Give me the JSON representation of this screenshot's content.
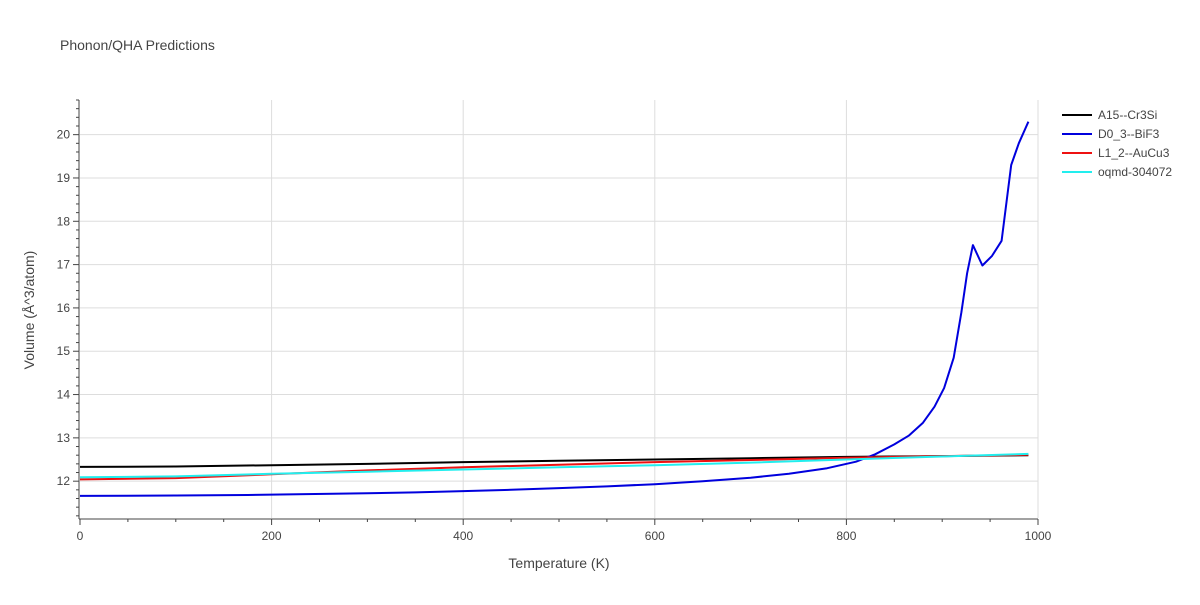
{
  "chart_data": {
    "type": "line",
    "title": "Phonon/QHA Predictions",
    "xlabel": "Temperature (K)",
    "ylabel": "Volume (Å^3/atom)",
    "xlim": [
      0,
      1000
    ],
    "ylim": [
      11.15,
      20.8
    ],
    "xticks": [
      0,
      200,
      400,
      600,
      800,
      1000
    ],
    "yticks": [
      12,
      13,
      14,
      15,
      16,
      17,
      18,
      19,
      20
    ],
    "grid": true,
    "legend_position": "top-right",
    "series": [
      {
        "name": "A15--Cr3Si",
        "color": "#000000",
        "points": [
          [
            0,
            12.33
          ],
          [
            100,
            12.34
          ],
          [
            200,
            12.37
          ],
          [
            300,
            12.4
          ],
          [
            400,
            12.44
          ],
          [
            500,
            12.47
          ],
          [
            600,
            12.5
          ],
          [
            700,
            12.53
          ],
          [
            800,
            12.56
          ],
          [
            900,
            12.58
          ],
          [
            990,
            12.6
          ]
        ]
      },
      {
        "name": "D0_3--BiF3",
        "color": "#0000dd",
        "points": [
          [
            0,
            11.66
          ],
          [
            100,
            11.67
          ],
          [
            175,
            11.68
          ],
          [
            200,
            11.69
          ],
          [
            300,
            11.72
          ],
          [
            350,
            11.74
          ],
          [
            400,
            11.77
          ],
          [
            450,
            11.8
          ],
          [
            500,
            11.84
          ],
          [
            550,
            11.88
          ],
          [
            600,
            11.93
          ],
          [
            650,
            12.0
          ],
          [
            700,
            12.08
          ],
          [
            740,
            12.17
          ],
          [
            780,
            12.3
          ],
          [
            810,
            12.45
          ],
          [
            830,
            12.62
          ],
          [
            850,
            12.85
          ],
          [
            865,
            13.05
          ],
          [
            880,
            13.35
          ],
          [
            892,
            13.72
          ],
          [
            902,
            14.15
          ],
          [
            912,
            14.85
          ],
          [
            920,
            15.9
          ],
          [
            926,
            16.8
          ],
          [
            932,
            17.45
          ],
          [
            942,
            16.98
          ],
          [
            952,
            17.2
          ],
          [
            962,
            17.55
          ],
          [
            972,
            19.3
          ],
          [
            980,
            19.8
          ],
          [
            990,
            20.3
          ]
        ]
      },
      {
        "name": "L1_2--AuCu3",
        "color": "#ee1111",
        "points": [
          [
            0,
            12.04
          ],
          [
            100,
            12.07
          ],
          [
            200,
            12.16
          ],
          [
            300,
            12.25
          ],
          [
            400,
            12.32
          ],
          [
            500,
            12.38
          ],
          [
            600,
            12.44
          ],
          [
            700,
            12.49
          ],
          [
            800,
            12.54
          ],
          [
            900,
            12.58
          ],
          [
            990,
            12.61
          ]
        ]
      },
      {
        "name": "oqmd-304072",
        "color": "#22eeee",
        "points": [
          [
            0,
            12.09
          ],
          [
            100,
            12.11
          ],
          [
            200,
            12.17
          ],
          [
            300,
            12.22
          ],
          [
            400,
            12.27
          ],
          [
            500,
            12.32
          ],
          [
            600,
            12.37
          ],
          [
            700,
            12.43
          ],
          [
            800,
            12.5
          ],
          [
            900,
            12.57
          ],
          [
            990,
            12.63
          ]
        ]
      }
    ]
  }
}
